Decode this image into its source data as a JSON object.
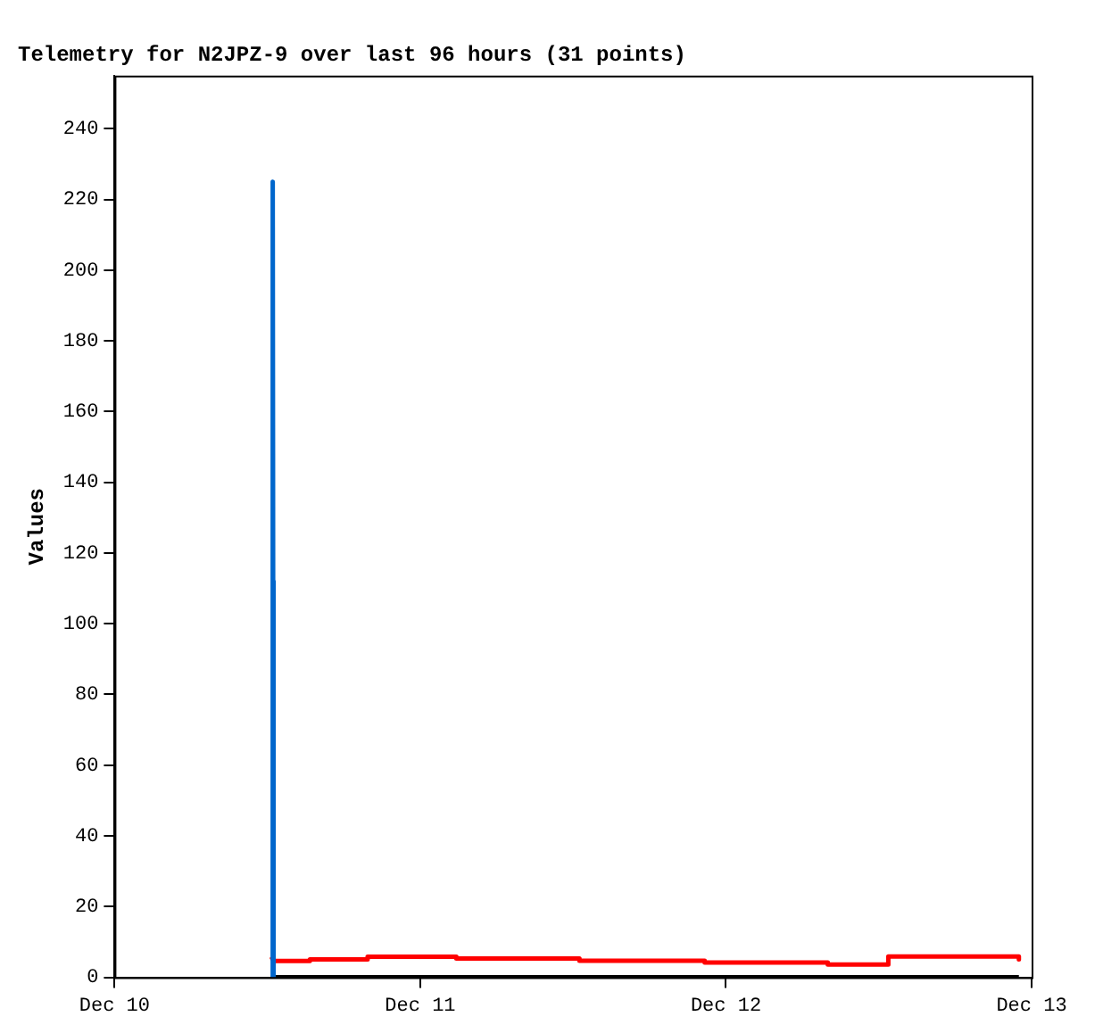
{
  "chart_data": {
    "type": "line",
    "title": "Telemetry for N2JPZ-9 over last 96 hours (31 points)",
    "ylabel": "Values",
    "xlim": [
      "--12-10",
      "--12-13"
    ],
    "xticks": [
      {
        "value": "--12-10",
        "label": "Dec 10"
      },
      {
        "value": "--12-11",
        "label": "Dec 11"
      },
      {
        "value": "--12-12",
        "label": "Dec 12"
      },
      {
        "value": "--12-13",
        "label": "Dec 13"
      }
    ],
    "ylim": [
      0,
      255
    ],
    "yticks": [
      0,
      20,
      40,
      60,
      80,
      100,
      120,
      140,
      160,
      180,
      200,
      220,
      240
    ],
    "marker": "none",
    "series": [
      {
        "color": "#0066cc",
        "x": [
          "--12-10T12:25",
          "--12-10T12:25",
          "--12-10T12:27",
          "--12-10T12:29"
        ],
        "values": [
          0,
          225,
          112,
          0
        ]
      },
      {
        "color": "#ff0000",
        "x": [
          "--12-10T12:19",
          "--12-10T12:29",
          "--12-10T15:20",
          "--12-10T15:20",
          "--12-10T19:52",
          "--12-10T19:52",
          "--12-11T02:50",
          "--12-11T02:50",
          "--12-11T12:30",
          "--12-11T12:30",
          "--12-11T22:20",
          "--12-11T22:20",
          "--12-12T08:00",
          "--12-12T08:00",
          "--12-12T12:45",
          "--12-12T12:45",
          "--12-12T23:00",
          "--12-12T23:00"
        ],
        "values": [
          5.8,
          4.6,
          4.6,
          5.1,
          5.1,
          5.8,
          5.8,
          5.3,
          5.3,
          4.7,
          4.7,
          4.2,
          4.2,
          3.6,
          3.6,
          5.9,
          5.9,
          5.1
        ]
      },
      {
        "color": "#000000",
        "x": [
          "--12-10T12:30",
          "--12-12T23:00"
        ],
        "values": [
          0,
          0
        ]
      }
    ]
  }
}
